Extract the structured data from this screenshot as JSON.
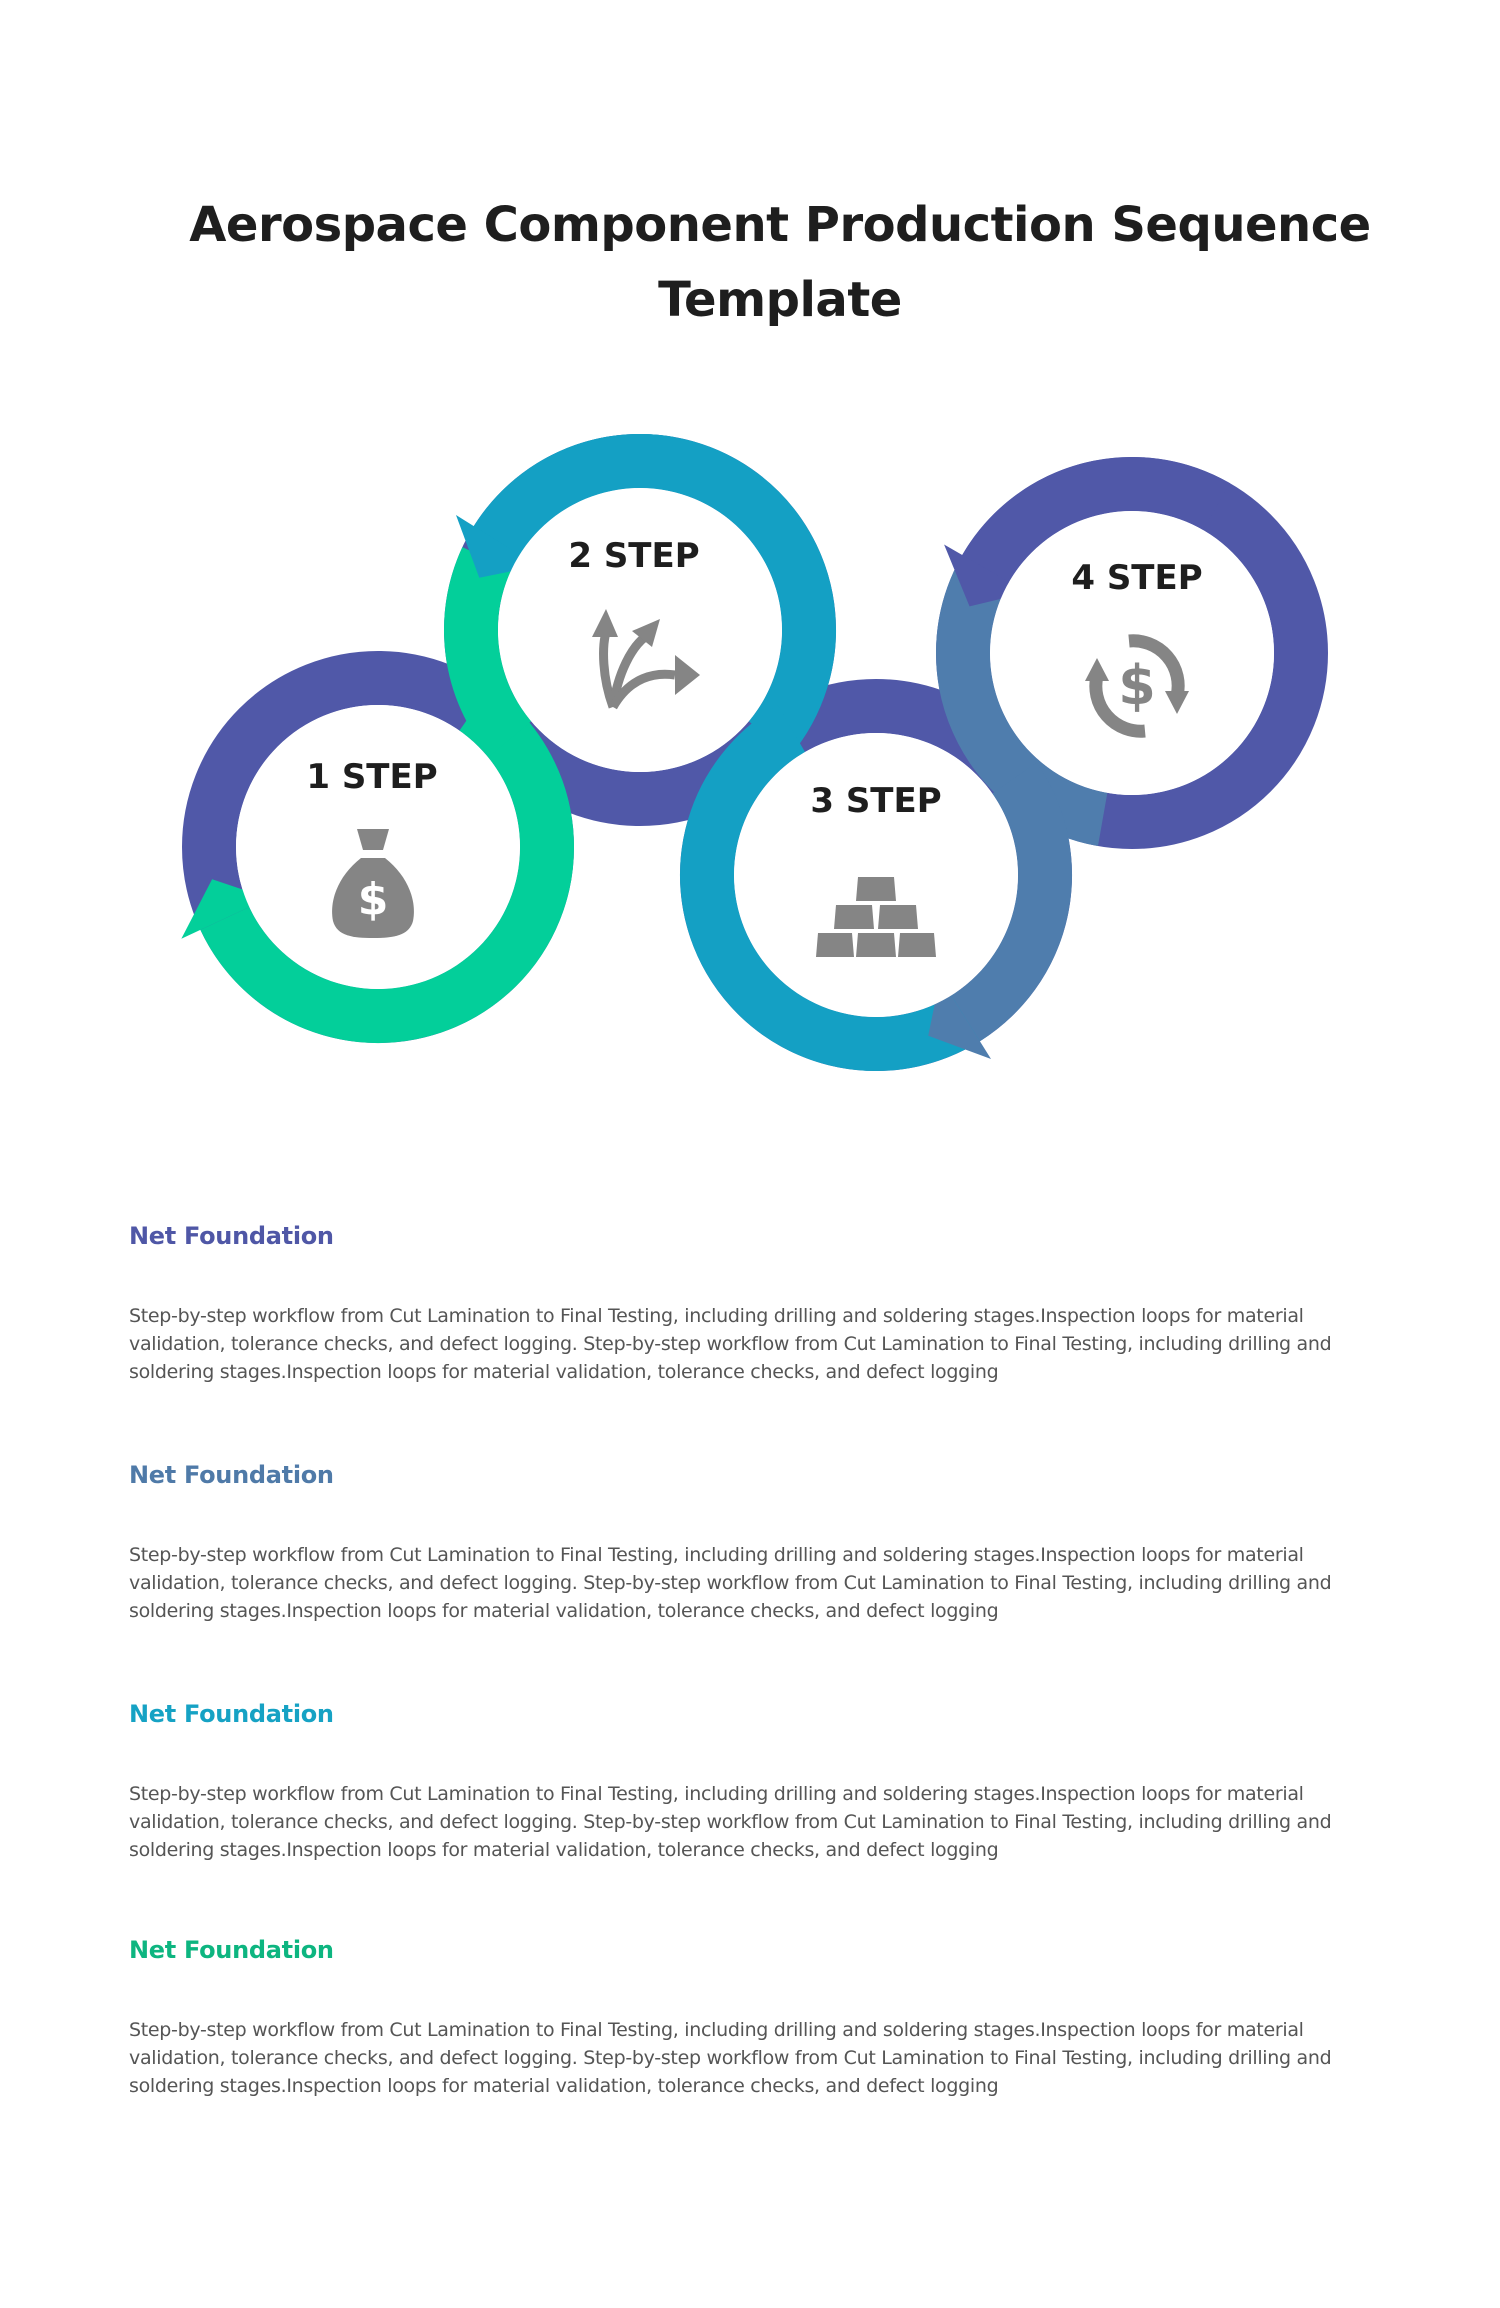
{
  "title": "Aerospace Component Production Sequence Template",
  "colors": {
    "purple": "#5058a8",
    "teal": "#14a0c4",
    "green": "#03cf9a",
    "slate": "#4f7dad",
    "icon": "#858585"
  },
  "steps": [
    {
      "label": "1 STEP",
      "icon": "money-bag-icon"
    },
    {
      "label": "2 STEP",
      "icon": "diverging-arrows-icon"
    },
    {
      "label": "3 STEP",
      "icon": "gold-bars-icon"
    },
    {
      "label": "4 STEP",
      "icon": "dollar-cycle-icon"
    }
  ],
  "sections": [
    {
      "heading": "Net Foundation",
      "color": "#4f57a6",
      "body": "Step-by-step workflow from Cut Lamination to Final Testing, including drilling and soldering stages.Inspection loops for material validation, tolerance checks, and defect logging. Step-by-step workflow from Cut Lamination to Final Testing, including drilling and soldering stages.Inspection loops for material validation, tolerance checks, and defect logging"
    },
    {
      "heading": "Net Foundation",
      "color": "#4f7aa8",
      "body": "Step-by-step workflow from Cut Lamination to Final Testing, including drilling and soldering stages.Inspection loops for material validation, tolerance checks, and defect logging. Step-by-step workflow from Cut Lamination to Final Testing, including drilling and soldering stages.Inspection loops for material validation, tolerance checks, and defect logging"
    },
    {
      "heading": "Net Foundation",
      "color": "#16a2c4",
      "body": "Step-by-step workflow from Cut Lamination to Final Testing, including drilling and soldering stages.Inspection loops for material validation, tolerance checks, and defect logging. Step-by-step workflow from Cut Lamination to Final Testing, including drilling and soldering stages.Inspection loops for material validation, tolerance checks, and defect logging"
    },
    {
      "heading": "Net Foundation",
      "color": "#0db580",
      "body": "Step-by-step workflow from Cut Lamination to Final Testing, including drilling and soldering stages.Inspection loops for material validation, tolerance checks, and defect logging. Step-by-step workflow from Cut Lamination to Final Testing, including drilling and soldering stages.Inspection loops for material validation, tolerance checks, and defect logging"
    }
  ]
}
